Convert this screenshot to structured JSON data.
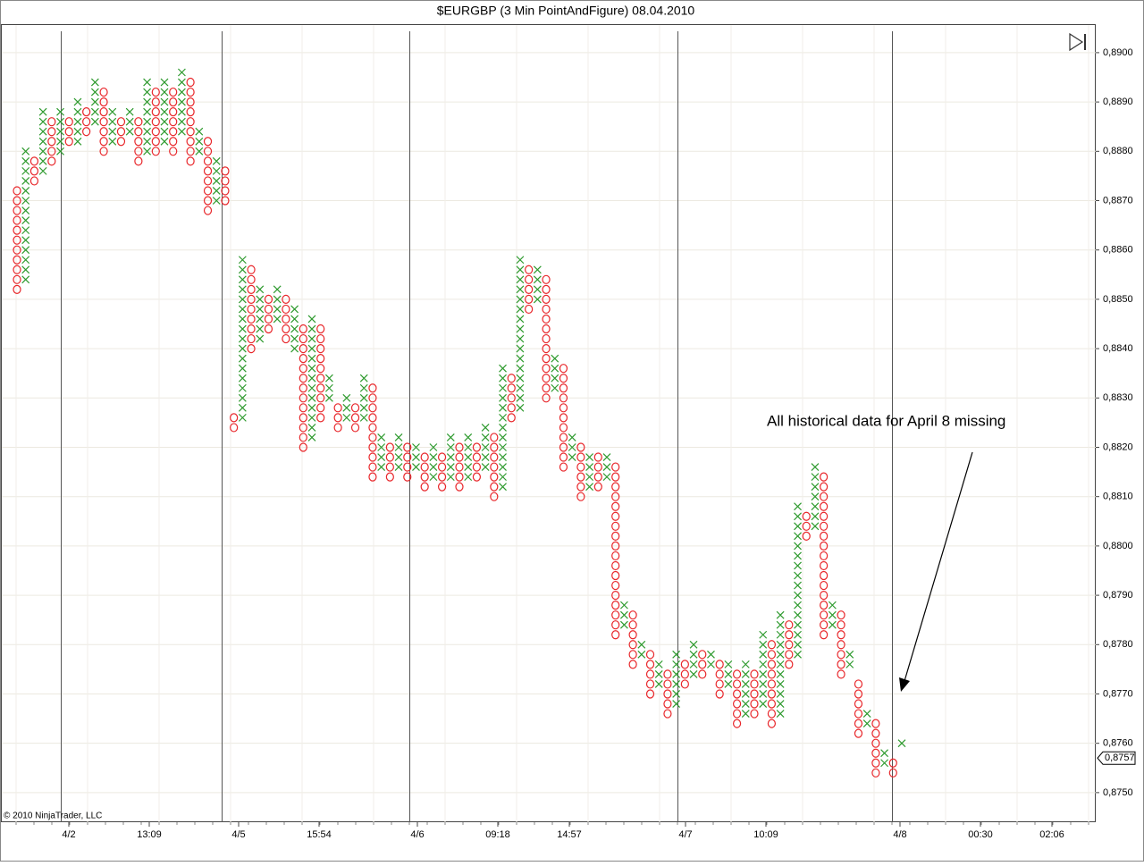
{
  "chart_data": {
    "type": "point-and-figure",
    "title": "$EURGBP (3 Min PointAndFigure)  08.04.2010",
    "annotation": "All historical data for April 8 missing",
    "copyright": "© 2010 NinjaTrader, LLC",
    "x_color": "#2e9a2e",
    "o_color": "#e8262a",
    "grid": true,
    "ylim": [
      0.8744,
      0.89056
    ],
    "yticks": [
      {
        "value": 0.875,
        "label": "0,8750"
      },
      {
        "value": 0.876,
        "label": "0,8760"
      },
      {
        "value": 0.877,
        "label": "0,8770"
      },
      {
        "value": 0.878,
        "label": "0,8780"
      },
      {
        "value": 0.879,
        "label": "0,8790"
      },
      {
        "value": 0.88,
        "label": "0,8800"
      },
      {
        "value": 0.881,
        "label": "0,8810"
      },
      {
        "value": 0.882,
        "label": "0,8820"
      },
      {
        "value": 0.883,
        "label": "0,8830"
      },
      {
        "value": 0.884,
        "label": "0,8840"
      },
      {
        "value": 0.885,
        "label": "0,8850"
      },
      {
        "value": 0.886,
        "label": "0,8860"
      },
      {
        "value": 0.887,
        "label": "0,8870"
      },
      {
        "value": 0.888,
        "label": "0,8880"
      },
      {
        "value": 0.889,
        "label": "0,8890"
      },
      {
        "value": 0.89,
        "label": "0,8900"
      }
    ],
    "x_labels": [
      "4/2",
      "13:09",
      "4/5",
      "15:54",
      "4/6",
      "09:18",
      "14:57",
      "4/7",
      "10:09",
      "4/8",
      "00:30",
      "02:06"
    ],
    "last_price": {
      "value": 0.8757,
      "label": "0,8757"
    },
    "columns": [
      {
        "kind": "O",
        "low": 0.8852,
        "high": 0.8872
      },
      {
        "kind": "X",
        "low": 0.8854,
        "high": 0.888
      },
      {
        "kind": "O",
        "low": 0.8874,
        "high": 0.8878
      },
      {
        "kind": "X",
        "low": 0.8876,
        "high": 0.8888
      },
      {
        "kind": "O",
        "low": 0.8878,
        "high": 0.8886
      },
      {
        "kind": "X",
        "low": 0.888,
        "high": 0.8888
      },
      {
        "kind": "O",
        "low": 0.8882,
        "high": 0.8886
      },
      {
        "kind": "X",
        "low": 0.8882,
        "high": 0.889
      },
      {
        "kind": "O",
        "low": 0.8884,
        "high": 0.8888
      },
      {
        "kind": "X",
        "low": 0.8886,
        "high": 0.8894
      },
      {
        "kind": "O",
        "low": 0.888,
        "high": 0.8892
      },
      {
        "kind": "X",
        "low": 0.8882,
        "high": 0.8888
      },
      {
        "kind": "O",
        "low": 0.8882,
        "high": 0.8886
      },
      {
        "kind": "X",
        "low": 0.8884,
        "high": 0.8888
      },
      {
        "kind": "O",
        "low": 0.8878,
        "high": 0.8886
      },
      {
        "kind": "X",
        "low": 0.888,
        "high": 0.8894
      },
      {
        "kind": "O",
        "low": 0.888,
        "high": 0.8892
      },
      {
        "kind": "X",
        "low": 0.8882,
        "high": 0.8894
      },
      {
        "kind": "O",
        "low": 0.888,
        "high": 0.8892
      },
      {
        "kind": "X",
        "low": 0.8884,
        "high": 0.8896
      },
      {
        "kind": "O",
        "low": 0.8878,
        "high": 0.8894
      },
      {
        "kind": "X",
        "low": 0.888,
        "high": 0.8884
      },
      {
        "kind": "O",
        "low": 0.8868,
        "high": 0.8882
      },
      {
        "kind": "X",
        "low": 0.887,
        "high": 0.8878
      },
      {
        "kind": "O",
        "low": 0.887,
        "high": 0.8876
      },
      {
        "kind": "O",
        "low": 0.8824,
        "high": 0.8826
      },
      {
        "kind": "X",
        "low": 0.8826,
        "high": 0.8858
      },
      {
        "kind": "O",
        "low": 0.884,
        "high": 0.8856
      },
      {
        "kind": "X",
        "low": 0.8842,
        "high": 0.8852
      },
      {
        "kind": "O",
        "low": 0.8844,
        "high": 0.885
      },
      {
        "kind": "X",
        "low": 0.8846,
        "high": 0.8852
      },
      {
        "kind": "O",
        "low": 0.8842,
        "high": 0.885
      },
      {
        "kind": "X",
        "low": 0.884,
        "high": 0.8848
      },
      {
        "kind": "O",
        "low": 0.882,
        "high": 0.8844
      },
      {
        "kind": "X",
        "low": 0.8822,
        "high": 0.8846
      },
      {
        "kind": "O",
        "low": 0.8826,
        "high": 0.8844
      },
      {
        "kind": "X",
        "low": 0.883,
        "high": 0.8834
      },
      {
        "kind": "O",
        "low": 0.8824,
        "high": 0.8828
      },
      {
        "kind": "X",
        "low": 0.8826,
        "high": 0.883
      },
      {
        "kind": "O",
        "low": 0.8824,
        "high": 0.8828
      },
      {
        "kind": "X",
        "low": 0.8826,
        "high": 0.8834
      },
      {
        "kind": "O",
        "low": 0.8814,
        "high": 0.8832
      },
      {
        "kind": "X",
        "low": 0.8816,
        "high": 0.8822
      },
      {
        "kind": "O",
        "low": 0.8814,
        "high": 0.882
      },
      {
        "kind": "X",
        "low": 0.8816,
        "high": 0.8822
      },
      {
        "kind": "O",
        "low": 0.8814,
        "high": 0.882
      },
      {
        "kind": "X",
        "low": 0.8816,
        "high": 0.882
      },
      {
        "kind": "O",
        "low": 0.8812,
        "high": 0.8818
      },
      {
        "kind": "X",
        "low": 0.8814,
        "high": 0.882
      },
      {
        "kind": "O",
        "low": 0.8812,
        "high": 0.8818
      },
      {
        "kind": "X",
        "low": 0.8814,
        "high": 0.8822
      },
      {
        "kind": "O",
        "low": 0.8812,
        "high": 0.882
      },
      {
        "kind": "X",
        "low": 0.8814,
        "high": 0.8822
      },
      {
        "kind": "O",
        "low": 0.8814,
        "high": 0.882
      },
      {
        "kind": "X",
        "low": 0.8816,
        "high": 0.8824
      },
      {
        "kind": "O",
        "low": 0.881,
        "high": 0.8822
      },
      {
        "kind": "X",
        "low": 0.8812,
        "high": 0.8836
      },
      {
        "kind": "O",
        "low": 0.8826,
        "high": 0.8834
      },
      {
        "kind": "X",
        "low": 0.8828,
        "high": 0.8858
      },
      {
        "kind": "O",
        "low": 0.8848,
        "high": 0.8856
      },
      {
        "kind": "X",
        "low": 0.885,
        "high": 0.8856
      },
      {
        "kind": "O",
        "low": 0.883,
        "high": 0.8854
      },
      {
        "kind": "X",
        "low": 0.8832,
        "high": 0.8838
      },
      {
        "kind": "O",
        "low": 0.8816,
        "high": 0.8836
      },
      {
        "kind": "X",
        "low": 0.8818,
        "high": 0.8822
      },
      {
        "kind": "O",
        "low": 0.881,
        "high": 0.882
      },
      {
        "kind": "X",
        "low": 0.8812,
        "high": 0.8818
      },
      {
        "kind": "O",
        "low": 0.8812,
        "high": 0.8818
      },
      {
        "kind": "X",
        "low": 0.8814,
        "high": 0.8818
      },
      {
        "kind": "O",
        "low": 0.8782,
        "high": 0.8816
      },
      {
        "kind": "X",
        "low": 0.8784,
        "high": 0.8788
      },
      {
        "kind": "O",
        "low": 0.8776,
        "high": 0.8786
      },
      {
        "kind": "X",
        "low": 0.8778,
        "high": 0.878
      },
      {
        "kind": "O",
        "low": 0.877,
        "high": 0.8778
      },
      {
        "kind": "X",
        "low": 0.8772,
        "high": 0.8776
      },
      {
        "kind": "O",
        "low": 0.8766,
        "high": 0.8774
      },
      {
        "kind": "X",
        "low": 0.8768,
        "high": 0.8778
      },
      {
        "kind": "O",
        "low": 0.8772,
        "high": 0.8776
      },
      {
        "kind": "X",
        "low": 0.8774,
        "high": 0.878
      },
      {
        "kind": "O",
        "low": 0.8774,
        "high": 0.8778
      },
      {
        "kind": "X",
        "low": 0.8776,
        "high": 0.8778
      },
      {
        "kind": "O",
        "low": 0.877,
        "high": 0.8776
      },
      {
        "kind": "X",
        "low": 0.8772,
        "high": 0.8776
      },
      {
        "kind": "O",
        "low": 0.8764,
        "high": 0.8774
      },
      {
        "kind": "X",
        "low": 0.8766,
        "high": 0.8776
      },
      {
        "kind": "O",
        "low": 0.8766,
        "high": 0.8774
      },
      {
        "kind": "X",
        "low": 0.8768,
        "high": 0.8782
      },
      {
        "kind": "O",
        "low": 0.8764,
        "high": 0.878
      },
      {
        "kind": "X",
        "low": 0.8766,
        "high": 0.8786
      },
      {
        "kind": "O",
        "low": 0.8776,
        "high": 0.8784
      },
      {
        "kind": "X",
        "low": 0.8778,
        "high": 0.8808
      },
      {
        "kind": "O",
        "low": 0.8802,
        "high": 0.8806
      },
      {
        "kind": "X",
        "low": 0.8804,
        "high": 0.8816
      },
      {
        "kind": "O",
        "low": 0.8782,
        "high": 0.8814
      },
      {
        "kind": "X",
        "low": 0.8784,
        "high": 0.8788
      },
      {
        "kind": "O",
        "low": 0.8774,
        "high": 0.8786
      },
      {
        "kind": "X",
        "low": 0.8776,
        "high": 0.8778
      },
      {
        "kind": "O",
        "low": 0.8762,
        "high": 0.8772
      },
      {
        "kind": "X",
        "low": 0.8764,
        "high": 0.8766
      },
      {
        "kind": "O",
        "low": 0.8754,
        "high": 0.8764
      },
      {
        "kind": "X",
        "low": 0.8756,
        "high": 0.8758
      },
      {
        "kind": "O",
        "low": 0.8754,
        "high": 0.8756
      },
      {
        "kind": "X",
        "low": 0.876,
        "high": 0.876
      }
    ]
  }
}
